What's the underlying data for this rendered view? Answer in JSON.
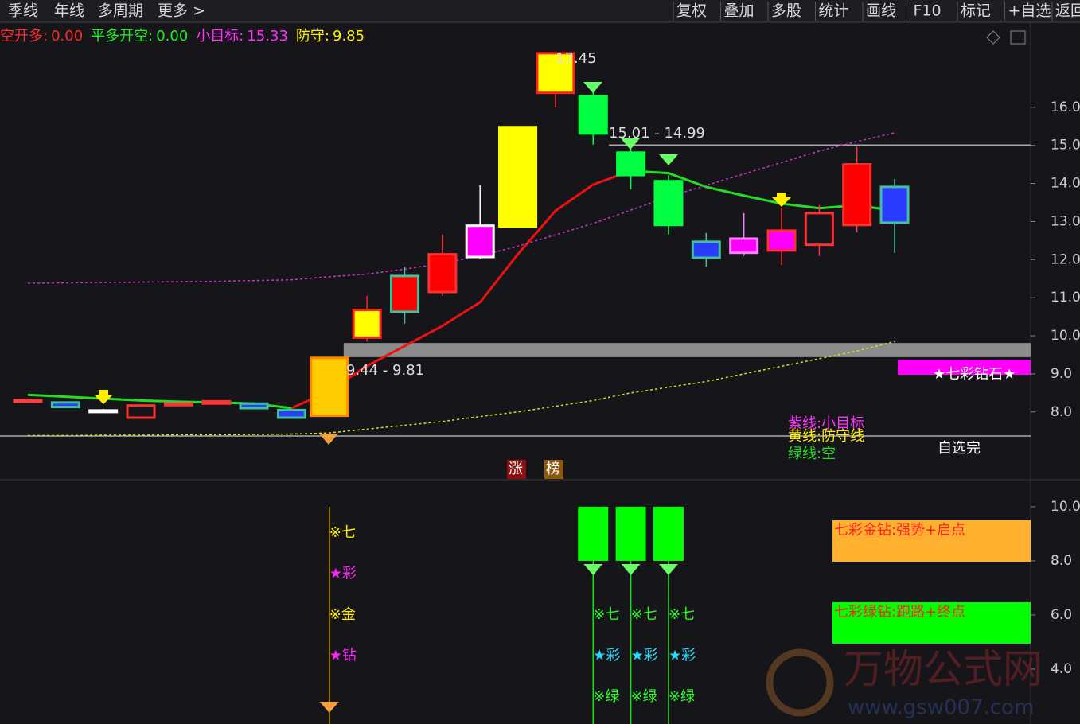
{
  "toolbar": {
    "left": [
      "季线",
      "年线",
      "多周期",
      "更多 >"
    ],
    "right": [
      "复权",
      "叠加",
      "多股",
      "统计",
      "画线",
      "F10",
      "标记",
      "+自选",
      "返回"
    ]
  },
  "chart_data": [
    {
      "type": "candlestick",
      "header": [
        {
          "name": "空开多:",
          "value": 0,
          "value_label": "0.00",
          "color": "#ff2a2a"
        },
        {
          "name": "平多开空:",
          "value": 0,
          "value_label": "0.00",
          "color": "#22ee22"
        },
        {
          "name": "小目标:",
          "value": 15.33,
          "value_label": "15.33",
          "color": "#ff33ff"
        },
        {
          "name": "防守:",
          "value": 9.85,
          "value_label": "9.85",
          "color": "#ffee00"
        }
      ],
      "open": [
        8.28,
        8.25,
        8.0,
        7.85,
        8.18,
        8.22,
        8.22,
        8.05,
        7.9,
        9.95,
        10.63,
        11.15,
        12.07,
        12.87,
        16.38,
        16.29,
        14.81,
        14.06,
        12.47,
        12.18,
        12.24,
        12.39,
        12.91,
        13.91
      ],
      "close": [
        8.31,
        8.13,
        8.04,
        8.17,
        8.22,
        8.28,
        8.1,
        7.85,
        9.42,
        10.68,
        11.57,
        12.14,
        12.89,
        15.48,
        17.42,
        15.31,
        14.22,
        12.91,
        12.05,
        12.55,
        12.76,
        13.22,
        14.5,
        12.97
      ],
      "high": [
        8.35,
        8.27,
        8.08,
        8.2,
        8.25,
        8.3,
        8.25,
        8.07,
        9.44,
        11.05,
        11.82,
        12.66,
        13.95,
        15.48,
        17.45,
        16.52,
        15.02,
        14.22,
        12.7,
        13.22,
        13.35,
        13.43,
        14.96,
        14.12
      ],
      "low": [
        8.25,
        8.1,
        7.98,
        7.83,
        8.15,
        8.2,
        8.08,
        7.83,
        7.88,
        9.85,
        10.32,
        11.05,
        12.02,
        12.87,
        16.0,
        15.02,
        13.85,
        12.66,
        11.82,
        12.1,
        11.86,
        12.1,
        12.72,
        12.18
      ],
      "colors": [
        "#ff4040",
        "#2a3cff",
        "#ffffff",
        "#16161a",
        "#ff2020",
        "#ff2020",
        "#2a3cff",
        "#2a3cff",
        "#ffcc00",
        "#ffff00",
        "#ff0000",
        "#ff0000",
        "#ff00ff",
        "#ffff00",
        "#ffff00",
        "#00ff40",
        "#00ff40",
        "#00ff40",
        "#2a3cff",
        "#ff00ff",
        "#ff00ff",
        "#16161a",
        "#ff0000",
        "#2a3cff"
      ],
      "edge_colors": [
        "#ff4040",
        "#40c0a0",
        "#ffffff",
        "#ff3030",
        "#ff3030",
        "#ff3030",
        "#40c0a0",
        "#40c0a0",
        "#ff8800",
        "#ff2020",
        "#40c0a0",
        "#ff3030",
        "#ffffff",
        "#ffff00",
        "#ff2020",
        "#00ff40",
        "#00ff40",
        "#00ff40",
        "#40c0a0",
        "#ff80ff",
        "#ff3030",
        "#ff3030",
        "#ff3030",
        "#40c0a0"
      ],
      "series": [
        {
          "color": "#22dd22",
          "style": "solid",
          "values": [
            8.45,
            8.4,
            8.35,
            8.3,
            8.27,
            8.25,
            8.22,
            8.1,
            null,
            null,
            null,
            null,
            null,
            null,
            null,
            null,
            14.33,
            14.27,
            13.91,
            13.68,
            13.47,
            13.35,
            13.43,
            13.28
          ]
        },
        {
          "color": "#ee1111",
          "style": "solid",
          "values": [
            null,
            null,
            null,
            null,
            null,
            null,
            null,
            8.1,
            8.55,
            9.21,
            9.73,
            10.26,
            10.88,
            12.14,
            13.28,
            13.97,
            14.33,
            null,
            null,
            null,
            null,
            null,
            null,
            null
          ]
        },
        {
          "color": "#cc33cc",
          "style": "dotted",
          "values": [
            11.38,
            11.39,
            11.4,
            11.41,
            11.42,
            11.43,
            11.45,
            11.47,
            11.55,
            11.62,
            11.75,
            11.9,
            12.1,
            12.35,
            12.65,
            12.95,
            13.3,
            13.65,
            13.95,
            14.25,
            14.55,
            14.85,
            15.1,
            15.33
          ]
        },
        {
          "color": "#dddd22",
          "style": "dotted",
          "values": [
            7.38,
            7.38,
            7.39,
            7.39,
            7.4,
            7.4,
            7.41,
            7.42,
            7.45,
            7.55,
            7.65,
            7.75,
            7.88,
            8.0,
            8.15,
            8.3,
            8.5,
            8.65,
            8.8,
            9.0,
            9.2,
            9.4,
            9.6,
            9.85
          ]
        }
      ],
      "hlines": [
        15.01,
        7.37
      ],
      "band": [
        9.44,
        9.81
      ],
      "ylim": [
        6.22,
        18.19
      ],
      "yticks": [
        {
          "value": 16,
          "label": "16.0"
        },
        {
          "value": 15,
          "label": "15.0"
        },
        {
          "value": 14,
          "label": "14.0"
        },
        {
          "value": 13,
          "label": "13.0"
        },
        {
          "value": 12,
          "label": "12.0"
        },
        {
          "value": 11,
          "label": "11.0"
        },
        {
          "value": 10,
          "label": "10.0"
        },
        {
          "value": 9,
          "label": "9.0"
        },
        {
          "value": 8,
          "label": "8.0"
        }
      ],
      "annotations": [
        "17.45",
        "15.01 - 14.99",
        "9.44 - 9.81",
        "紫线:小目标",
        "黄线:防守线",
        "绿线:空",
        "★七彩钻石★",
        "自选完",
        "涨",
        "榜"
      ]
    },
    {
      "type": "bar",
      "color": "#00ff00",
      "bar_bottom": 8,
      "values": [
        null,
        null,
        null,
        null,
        null,
        null,
        null,
        null,
        null,
        null,
        null,
        null,
        null,
        null,
        null,
        10,
        10,
        10,
        null,
        null,
        null,
        null,
        null,
        null
      ],
      "ylim": [
        1.97,
        10.94
      ],
      "yticks": [
        {
          "value": 10,
          "label": "10.0"
        },
        {
          "value": 8,
          "label": "8.0"
        },
        {
          "value": 6,
          "label": "6.0"
        },
        {
          "value": 4,
          "label": "4.0"
        }
      ],
      "gold_labels": [
        "※七",
        "★彩",
        "※金",
        "★钻"
      ],
      "green_labels": [
        "※七",
        "★彩",
        "※绿"
      ],
      "boxes": [
        {
          "text": "七彩金钻:强势+启点",
          "color": "#ffb02e"
        },
        {
          "text": "七彩绿钻:跑路+终点",
          "color": "#00ff00"
        }
      ]
    }
  ],
  "watermark": {
    "name": "万物公式网",
    "url": "www.gsw007.com"
  }
}
